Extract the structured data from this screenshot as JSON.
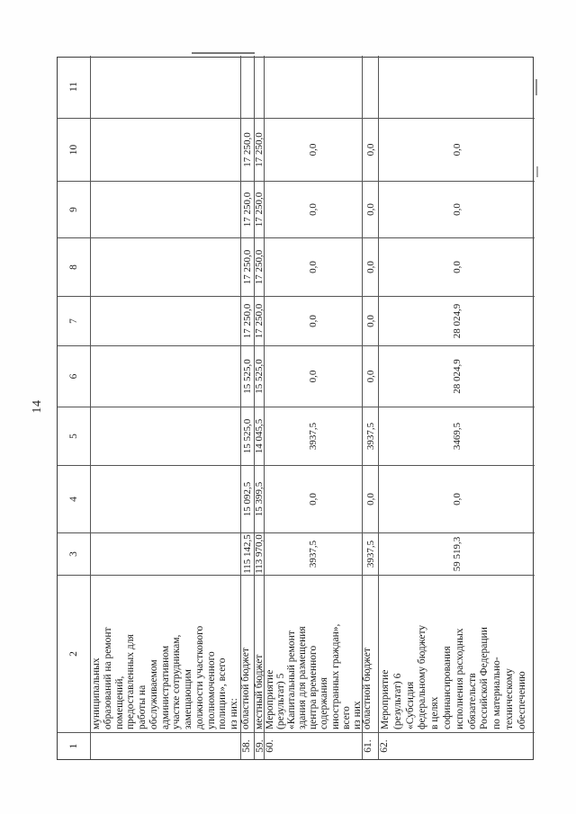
{
  "page": {
    "number": "14"
  },
  "table": {
    "headers": [
      "1",
      "2",
      "3",
      "4",
      "5",
      "6",
      "7",
      "8",
      "9",
      "10",
      "11"
    ],
    "rows": [
      {
        "num": "",
        "label": "муниципальных\nобразований на ремонт\nпомещений,\nпредоставленных для\nработы на\nобслуживаемом\nадминистративном\nучастке сотрудникам,\nзамещающим\nдолжности участкового\nуполномоченного\nполиции», всего\nиз них:",
        "values": [
          "",
          "",
          "",
          "",
          "",
          "",
          "",
          ""
        ]
      },
      {
        "num": "58.",
        "label": "областной бюджет",
        "values": [
          "115 142,5",
          "15 092,5",
          "15 525,0",
          "15 525,0",
          "17 250,0",
          "17 250,0",
          "17 250,0",
          "17 250,0"
        ]
      },
      {
        "num": "59.",
        "label": "местный бюджет",
        "values": [
          "113 970,0",
          "15 399,5",
          "14 045,5",
          "15 525,0",
          "17 250,0",
          "17 250,0",
          "17 250,0",
          "17 250,0"
        ]
      },
      {
        "num": "60.",
        "label": "Мероприятие\n(результат) 5\n«Капитальный ремонт\nздания для размещения\nцентра временного\nсодержания\nиностранных граждан»,\nвсего\nиз них",
        "values": [
          "3937,5",
          "0,0",
          "3937,5",
          "0,0",
          "0,0",
          "0,0",
          "0,0",
          "0,0"
        ]
      },
      {
        "num": "61.",
        "label": "областной бюджет",
        "values": [
          "3937,5",
          "0,0",
          "3937,5",
          "0,0",
          "0,0",
          "0,0",
          "0,0",
          "0,0"
        ]
      },
      {
        "num": "62.",
        "label": "Мероприятие\n(результат) 6\n«Субсидия\nфедеральному бюджету\nв целях\nсофинансирования\nисполнения расходных\nобязательств\nРоссийской Федерации\nпо материально-\nтехническому\nобеспечению",
        "values": [
          "59 519,3",
          "0,0",
          "3469,5",
          "28 024,9",
          "28 024,9",
          "0,0",
          "0,0",
          "0,0"
        ]
      }
    ]
  }
}
